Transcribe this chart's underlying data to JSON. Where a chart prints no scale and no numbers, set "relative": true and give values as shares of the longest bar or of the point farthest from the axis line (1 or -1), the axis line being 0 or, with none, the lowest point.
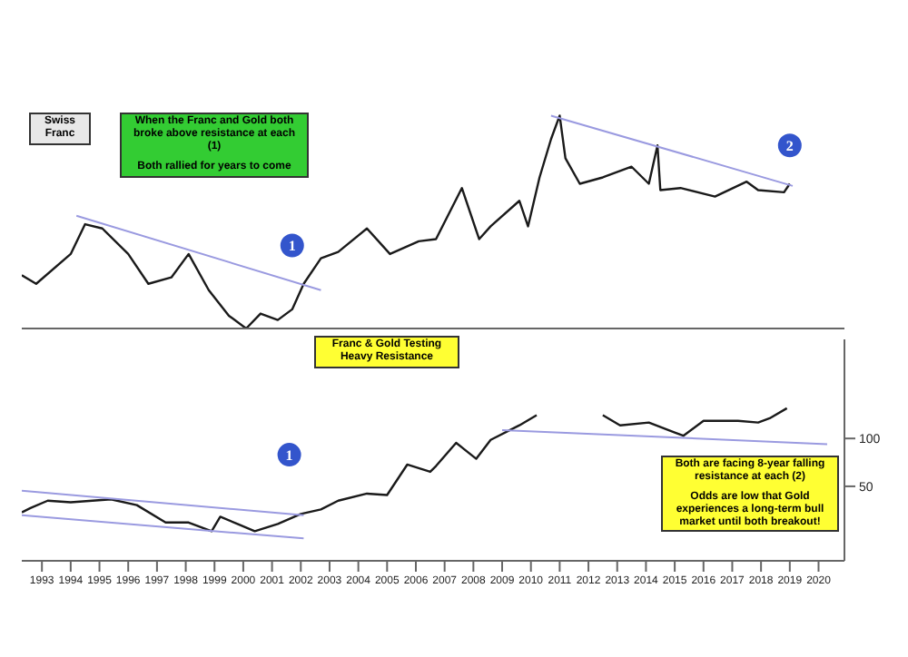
{
  "chart_data": [
    {
      "type": "line",
      "relative": true,
      "xlim": [
        1992.3,
        2020.9
      ],
      "tick_labels": false,
      "series": [
        {
          "color": "#1a1a1a",
          "x": [
            1992.3,
            1992.8,
            1994.0,
            1994.5,
            1995.1,
            1996.0,
            1996.7,
            1997.5,
            1998.1,
            1998.8,
            1999.5,
            2000.1,
            2000.6,
            2001.2,
            2001.7,
            2002.1,
            2002.7,
            2003.3,
            2004.3,
            2005.1,
            2006.1,
            2006.7,
            2007.6,
            2008.2,
            2008.6,
            2009.6,
            2009.9,
            2010.3,
            2010.7,
            2011.0,
            2011.2,
            2011.7,
            2012.5,
            2013.5,
            2014.1,
            2014.4,
            2014.5,
            2015.2,
            2016.4,
            2017.5,
            2017.9,
            2018.8,
            2019.0
          ],
          "values": [
            0.25,
            0.21,
            0.35,
            0.49,
            0.47,
            0.35,
            0.21,
            0.24,
            0.35,
            0.18,
            0.06,
            0,
            0.07,
            0.04,
            0.09,
            0.21,
            0.33,
            0.36,
            0.47,
            0.35,
            0.41,
            0.42,
            0.66,
            0.42,
            0.48,
            0.6,
            0.48,
            0.71,
            0.89,
            1,
            0.8,
            0.68,
            0.71,
            0.76,
            0.68,
            0.86,
            0.65,
            0.66,
            0.62,
            0.69,
            0.65,
            0.64,
            0.68
          ]
        },
        {
          "type": "line",
          "color": "#9a9ae0",
          "x": [
            1994.2,
            2002.7
          ],
          "values": [
            0.53,
            0.18
          ]
        },
        {
          "type": "line",
          "color": "#9a9ae0",
          "x": [
            2010.7,
            2019.1
          ],
          "values": [
            1,
            0.67
          ]
        }
      ],
      "annotations": [
        "Swiss Franc",
        "When the Franc and Gold both broke above  resistance at each (1)",
        "Both rallied for years to come",
        {
          "text": "1",
          "x": 2001.7,
          "y": 0.39
        },
        {
          "text": "2",
          "x": 2019.0,
          "y": 0.86
        }
      ]
    },
    {
      "type": "line",
      "log": true,
      "xlim": [
        1992.3,
        2020.9
      ],
      "xticks": [
        1993,
        1994,
        1995,
        1996,
        1997,
        1998,
        1999,
        2000,
        2001,
        2002,
        2003,
        2004,
        2005,
        2006,
        2007,
        2008,
        2009,
        2010,
        2011,
        2012,
        2013,
        2014,
        2015,
        2016,
        2017,
        2018,
        2019,
        2020
      ],
      "ylim": [
        17,
        420
      ],
      "yticks": [
        50,
        100
      ],
      "series": [
        {
          "color": "#1a1a1a",
          "x": [
            1992.3,
            1992.6,
            1993.2,
            1994.0,
            1995.4,
            1996.3,
            1997.3,
            1998.1,
            1998.9,
            1999.2,
            1999.8,
            2000.4,
            2001.2,
            2002.0,
            2002.7,
            2003.3,
            2004.3,
            2005.0,
            2005.7,
            2006.5,
            2006.7,
            2007.4,
            2008.1,
            2008.6,
            2009.6,
            2010.2,
            2011.4,
            2012.5,
            2013.1,
            2014.1,
            2015.0,
            2015.3,
            2016.0,
            2017.2,
            2017.9,
            2018.3,
            2018.9
          ],
          "values": [
            34.3,
            36.5,
            40.6,
            39.7,
            41.4,
            38.1,
            29.6,
            29.6,
            26.1,
            32.2,
            29.0,
            26.1,
            29.0,
            33.5,
            35.8,
            40.6,
            45.0,
            44.1,
            68.5,
            61.7,
            67.1,
            93.9,
            74.5,
            97.9,
            121,
            140,
            null,
            140,
            121,
            126,
            109,
            104,
            129,
            129,
            126,
            134,
            155
          ]
        },
        {
          "type": "line",
          "color": "#9a9ae0",
          "x": [
            1992.3,
            2002.1
          ],
          "values": [
            47.0,
            32.9
          ]
        },
        {
          "type": "line",
          "color": "#9a9ae0",
          "x": [
            1992.3,
            2002.1
          ],
          "values": [
            32.9,
            23.5
          ]
        },
        {
          "type": "line",
          "color": "#9a9ae0",
          "x": [
            2009.0,
            2020.3
          ],
          "values": [
            113,
            92
          ]
        }
      ],
      "annotations": [
        "Franc & Gold Testing Heavy Resistance",
        "Both are facing 8-year falling resistance at each (2)",
        "Odds are low that Gold experiences a long-term bull market until both breakout!",
        {
          "text": "1",
          "x": 2001.6,
          "y": 79
        }
      ]
    }
  ]
}
